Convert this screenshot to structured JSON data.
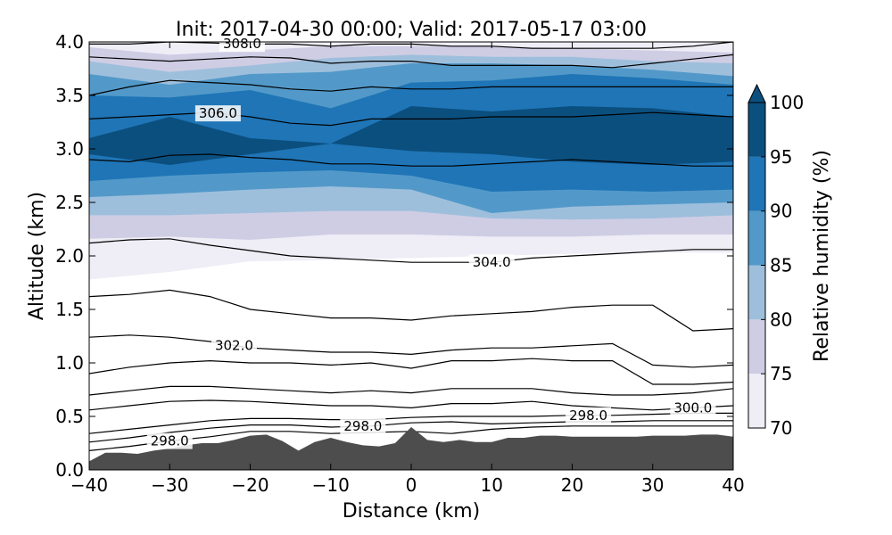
{
  "chart_data": {
    "type": "heatmap",
    "title": "Init: 2017-04-30 00:00; Valid: 2017-05-17 03:00",
    "xlabel": "Distance (km)",
    "ylabel": "Altitude (km)",
    "xlim": [
      -40,
      40
    ],
    "ylim": [
      0.0,
      4.0
    ],
    "x_ticks": [
      -40,
      -30,
      -20,
      -10,
      0,
      10,
      20,
      30,
      40
    ],
    "x_tick_labels": [
      "−40",
      "−30",
      "−20",
      "−10",
      "0",
      "10",
      "20",
      "30",
      "40"
    ],
    "y_ticks": [
      0.0,
      0.5,
      1.0,
      1.5,
      2.0,
      2.5,
      3.0,
      3.5,
      4.0
    ],
    "y_tick_labels": [
      "0.0",
      "0.5",
      "1.0",
      "1.5",
      "2.0",
      "2.5",
      "3.0",
      "3.5",
      "4.0"
    ],
    "colorbar": {
      "label": "Relative humidity (%)",
      "levels": [
        70,
        75,
        80,
        85,
        90,
        95,
        100
      ],
      "level_labels": [
        "70",
        "75",
        "80",
        "85",
        "90",
        "95",
        "100"
      ],
      "colors": [
        "#efedf5",
        "#cfcde4",
        "#9ebfdc",
        "#5299c9",
        "#1f75b6",
        "#0b4f7f"
      ],
      "extend": "max"
    },
    "terrain": {
      "color": "#4d4d4d",
      "x": [
        -40,
        -38,
        -36,
        -34,
        -32,
        -30,
        -28,
        -26,
        -24,
        -22,
        -20,
        -18,
        -16,
        -14,
        -12,
        -10,
        -8,
        -6,
        -4,
        -2,
        0,
        2,
        4,
        6,
        8,
        10,
        12,
        14,
        16,
        18,
        20,
        22,
        24,
        26,
        28,
        30,
        32,
        34,
        36,
        38,
        40
      ],
      "y": [
        0.08,
        0.16,
        0.16,
        0.15,
        0.18,
        0.2,
        0.23,
        0.25,
        0.25,
        0.28,
        0.32,
        0.33,
        0.27,
        0.18,
        0.26,
        0.3,
        0.26,
        0.23,
        0.22,
        0.25,
        0.4,
        0.28,
        0.26,
        0.28,
        0.26,
        0.26,
        0.3,
        0.3,
        0.32,
        0.32,
        0.31,
        0.31,
        0.31,
        0.31,
        0.31,
        0.32,
        0.32,
        0.32,
        0.33,
        0.33,
        0.31
      ]
    },
    "rh_bands": [
      {
        "level": 70,
        "x": [
          -40,
          -30,
          -20,
          -10,
          0,
          10,
          20,
          30,
          40
        ],
        "bottom": [
          1.78,
          1.85,
          1.95,
          1.96,
          1.98,
          2.0,
          2.02,
          2.03,
          2.03
        ],
        "top": [
          4.0,
          4.0,
          4.0,
          4.0,
          4.0,
          4.0,
          4.0,
          4.0,
          4.0
        ]
      },
      {
        "level": 75,
        "x": [
          -40,
          -30,
          -20,
          -10,
          0,
          10,
          20,
          30,
          40
        ],
        "bottom": [
          2.16,
          2.18,
          2.15,
          2.2,
          2.2,
          2.18,
          2.18,
          2.2,
          2.2
        ],
        "top": [
          3.95,
          3.88,
          3.92,
          3.96,
          3.96,
          3.96,
          3.94,
          3.92,
          3.9
        ]
      },
      {
        "level": 80,
        "x": [
          -40,
          -30,
          -20,
          -10,
          0,
          10,
          20,
          30,
          40
        ],
        "bottom": [
          2.38,
          2.38,
          2.4,
          2.42,
          2.42,
          2.35,
          2.34,
          2.35,
          2.38
        ],
        "top": [
          3.82,
          3.72,
          3.78,
          3.85,
          3.88,
          3.86,
          3.86,
          3.82,
          3.8
        ]
      },
      {
        "level": 85,
        "x": [
          -40,
          -30,
          -20,
          -10,
          0,
          10,
          20,
          30,
          40
        ],
        "bottom": [
          2.55,
          2.58,
          2.62,
          2.65,
          2.62,
          2.4,
          2.46,
          2.48,
          2.5
        ],
        "top": [
          3.7,
          3.6,
          3.7,
          3.72,
          3.8,
          3.8,
          3.78,
          3.74,
          3.68
        ]
      },
      {
        "level": 90,
        "x": [
          -40,
          -30,
          -20,
          -10,
          0,
          10,
          20,
          30,
          40
        ],
        "bottom": [
          2.7,
          2.75,
          2.78,
          2.8,
          2.75,
          2.6,
          2.62,
          2.6,
          2.62
        ],
        "top": [
          3.5,
          3.48,
          3.55,
          3.38,
          3.62,
          3.64,
          3.7,
          3.66,
          3.6
        ]
      },
      {
        "level": 95,
        "x": [
          -40,
          -30,
          -20,
          -10,
          0,
          10,
          20,
          30,
          40
        ],
        "bottom": [
          2.95,
          2.85,
          2.95,
          3.05,
          2.98,
          2.95,
          2.88,
          2.85,
          2.88
        ],
        "top": [
          3.1,
          3.3,
          3.1,
          3.05,
          3.4,
          3.35,
          3.4,
          3.38,
          3.3
        ]
      }
    ],
    "theta_contours": [
      {
        "label": "298.0",
        "label_x": -30,
        "x": [
          -40,
          -35,
          -30,
          -25,
          -20,
          -15,
          -10,
          -5,
          0,
          5,
          10,
          15,
          20,
          25,
          30,
          35,
          40
        ],
        "y": [
          0.18,
          0.22,
          0.27,
          0.31,
          0.36,
          0.36,
          0.34,
          0.35,
          0.36,
          0.34,
          0.38,
          0.4,
          0.41,
          0.41,
          0.41,
          0.41,
          0.41
        ]
      },
      {
        "label": "298.0",
        "label_x": -6,
        "x": [
          -40,
          -35,
          -30,
          -25,
          -20,
          -15,
          -10,
          -5,
          0,
          5,
          10,
          15,
          20,
          25,
          30,
          35,
          40
        ],
        "y": [
          0.26,
          0.3,
          0.35,
          0.39,
          0.42,
          0.42,
          0.4,
          0.41,
          0.44,
          0.45,
          0.43,
          0.44,
          0.45,
          0.45,
          0.46,
          0.46,
          0.46
        ]
      },
      {
        "label": "298.0",
        "label_x": 22,
        "x": [
          -40,
          -35,
          -30,
          -25,
          -20,
          -15,
          -10,
          -5,
          0,
          5,
          10,
          15,
          20,
          25,
          30,
          35,
          40
        ],
        "y": [
          0.34,
          0.38,
          0.42,
          0.46,
          0.48,
          0.48,
          0.47,
          0.47,
          0.49,
          0.5,
          0.5,
          0.5,
          0.51,
          0.51,
          0.52,
          0.53,
          0.53
        ]
      },
      {
        "label": "300.0",
        "label_x": 35,
        "x": [
          -40,
          -35,
          -30,
          -25,
          -20,
          -15,
          -10,
          -5,
          0,
          5,
          10,
          15,
          20,
          25,
          30,
          35,
          40
        ],
        "y": [
          0.56,
          0.6,
          0.64,
          0.65,
          0.64,
          0.62,
          0.6,
          0.6,
          0.58,
          0.62,
          0.62,
          0.64,
          0.6,
          0.58,
          0.56,
          0.58,
          0.6
        ]
      },
      {
        "label": "",
        "label_x": null,
        "x": [
          -40,
          -35,
          -30,
          -25,
          -20,
          -15,
          -10,
          -5,
          0,
          5,
          10,
          15,
          20,
          25,
          30,
          35,
          40
        ],
        "y": [
          0.7,
          0.74,
          0.78,
          0.78,
          0.76,
          0.74,
          0.72,
          0.74,
          0.72,
          0.76,
          0.76,
          0.76,
          0.72,
          0.7,
          0.7,
          0.72,
          0.76
        ]
      },
      {
        "label": "",
        "label_x": null,
        "x": [
          -40,
          -35,
          -30,
          -25,
          -20,
          -15,
          -10,
          -5,
          0,
          5,
          10,
          15,
          20,
          25,
          30,
          35,
          40
        ],
        "y": [
          0.9,
          0.96,
          1.0,
          1.02,
          1.0,
          1.0,
          0.98,
          1.0,
          0.95,
          1.02,
          1.02,
          1.04,
          1.02,
          1.02,
          0.8,
          0.8,
          0.82
        ]
      },
      {
        "label": "302.0",
        "label_x": -22,
        "x": [
          -40,
          -35,
          -30,
          -25,
          -20,
          -15,
          -10,
          -5,
          0,
          5,
          10,
          15,
          20,
          25,
          30,
          35,
          40
        ],
        "y": [
          1.24,
          1.26,
          1.24,
          1.2,
          1.14,
          1.12,
          1.1,
          1.1,
          1.08,
          1.12,
          1.14,
          1.14,
          1.16,
          1.18,
          0.98,
          0.96,
          0.98
        ]
      },
      {
        "label": "",
        "label_x": null,
        "x": [
          -40,
          -35,
          -30,
          -25,
          -20,
          -15,
          -10,
          -5,
          0,
          5,
          10,
          15,
          20,
          25,
          30,
          35,
          40
        ],
        "y": [
          1.62,
          1.64,
          1.68,
          1.62,
          1.5,
          1.46,
          1.42,
          1.42,
          1.4,
          1.44,
          1.46,
          1.48,
          1.52,
          1.54,
          1.54,
          1.3,
          1.32
        ]
      },
      {
        "label": "304.0",
        "label_x": 10,
        "x": [
          -40,
          -35,
          -30,
          -25,
          -20,
          -15,
          -10,
          -5,
          0,
          5,
          10,
          15,
          20,
          25,
          30,
          35,
          40
        ],
        "y": [
          2.12,
          2.15,
          2.16,
          2.1,
          2.05,
          2.0,
          1.98,
          1.96,
          1.94,
          1.94,
          1.94,
          1.98,
          2.0,
          2.02,
          2.04,
          2.06,
          2.06
        ]
      },
      {
        "label": "",
        "label_x": null,
        "x": [
          -40,
          -35,
          -30,
          -25,
          -20,
          -15,
          -10,
          -5,
          0,
          5,
          10,
          15,
          20,
          25,
          30,
          35,
          40
        ],
        "y": [
          2.9,
          2.88,
          2.94,
          2.95,
          2.92,
          2.9,
          2.86,
          2.86,
          2.84,
          2.84,
          2.86,
          2.88,
          2.9,
          2.88,
          2.86,
          2.84,
          2.84
        ]
      },
      {
        "label": "306.0",
        "label_x": -24,
        "x": [
          -40,
          -35,
          -30,
          -25,
          -20,
          -15,
          -10,
          -5,
          0,
          5,
          10,
          15,
          20,
          25,
          30,
          35,
          40
        ],
        "y": [
          3.28,
          3.3,
          3.32,
          3.34,
          3.3,
          3.24,
          3.22,
          3.28,
          3.28,
          3.28,
          3.3,
          3.3,
          3.3,
          3.32,
          3.34,
          3.32,
          3.3
        ]
      },
      {
        "label": "",
        "label_x": null,
        "x": [
          -40,
          -35,
          -30,
          -25,
          -20,
          -15,
          -10,
          -5,
          0,
          5,
          10,
          15,
          20,
          25,
          30,
          35,
          40
        ],
        "y": [
          3.5,
          3.58,
          3.64,
          3.62,
          3.6,
          3.56,
          3.54,
          3.58,
          3.56,
          3.56,
          3.58,
          3.58,
          3.58,
          3.58,
          3.58,
          3.58,
          3.58
        ]
      },
      {
        "label": "",
        "label_x": null,
        "x": [
          -40,
          -35,
          -30,
          -25,
          -20,
          -15,
          -10,
          -5,
          0,
          5,
          10,
          15,
          20,
          25,
          30,
          35,
          40
        ],
        "y": [
          3.86,
          3.84,
          3.82,
          3.84,
          3.86,
          3.85,
          3.8,
          3.82,
          3.82,
          3.78,
          3.78,
          3.78,
          3.78,
          3.76,
          3.8,
          3.84,
          3.88
        ]
      },
      {
        "label": "308.0",
        "label_x": -21,
        "x": [
          -40,
          -35,
          -30,
          -25,
          -20,
          -15,
          -10,
          -5,
          0,
          5,
          10,
          15,
          20,
          25,
          30,
          35,
          40
        ],
        "y": [
          3.98,
          3.98,
          4.0,
          3.99,
          3.98,
          3.98,
          3.96,
          3.98,
          3.98,
          3.96,
          3.96,
          3.94,
          3.94,
          3.94,
          3.94,
          3.96,
          4.0
        ]
      }
    ]
  }
}
